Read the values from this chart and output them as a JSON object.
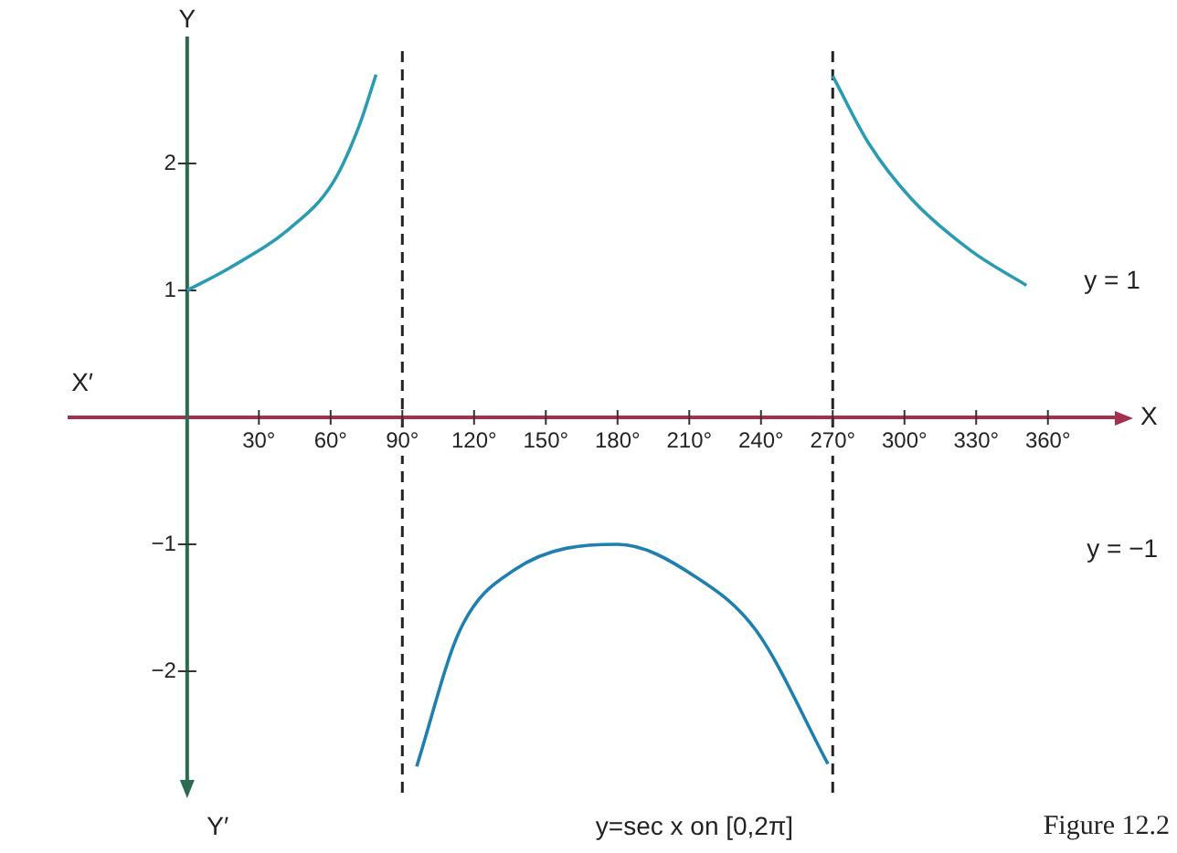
{
  "chart_data": {
    "type": "line",
    "xlabel": "X",
    "ylabel": "Y",
    "annotations": [
      "X′",
      "Y′",
      "y = 1",
      "y = −1",
      "y=sec x on [0,2π]",
      "Figure 12.2"
    ],
    "xlim": [
      -50,
      388
    ],
    "ylim": [
      -3,
      3
    ],
    "xticks": [
      {
        "value": 30,
        "label": "30°"
      },
      {
        "value": 60,
        "label": "60°"
      },
      {
        "value": 90,
        "label": "90°"
      },
      {
        "value": 120,
        "label": "120°"
      },
      {
        "value": 150,
        "label": "150°"
      },
      {
        "value": 180,
        "label": "180°"
      },
      {
        "value": 210,
        "label": "210°"
      },
      {
        "value": 240,
        "label": "240°"
      },
      {
        "value": 270,
        "label": "270°"
      },
      {
        "value": 300,
        "label": "300°"
      },
      {
        "value": 330,
        "label": "330°"
      },
      {
        "value": 360,
        "label": "360°"
      }
    ],
    "yticks": [
      2,
      1,
      {
        "value": -1,
        "label": "−1"
      },
      {
        "value": -2,
        "label": "−2"
      }
    ],
    "marker": "none",
    "line_style": "solid",
    "legend": false,
    "ref_lines": [
      {
        "axis": "x",
        "value": 90,
        "color": "#222222",
        "line_style": "dashed"
      },
      {
        "axis": "x",
        "value": 270,
        "color": "#222222",
        "line_style": "dashed"
      }
    ],
    "series": [
      {
        "color": "#2a9bb0",
        "x": [
          0,
          18,
          43,
          61,
          72,
          79
        ],
        "values": [
          1,
          1.18,
          1.49,
          1.85,
          2.3,
          2.7
        ]
      },
      {
        "color": "#1f7fae",
        "x": [
          96,
          114,
          137,
          180,
          213,
          238,
          268
        ],
        "values": [
          -2.75,
          -1.68,
          -1.2,
          -1,
          -1.26,
          -1.68,
          -2.73
        ]
      },
      {
        "color": "#2a9bb0",
        "x": [
          270,
          285,
          303,
          328,
          351
        ],
        "values": [
          2.69,
          2.16,
          1.72,
          1.31,
          1.04
        ]
      }
    ]
  }
}
